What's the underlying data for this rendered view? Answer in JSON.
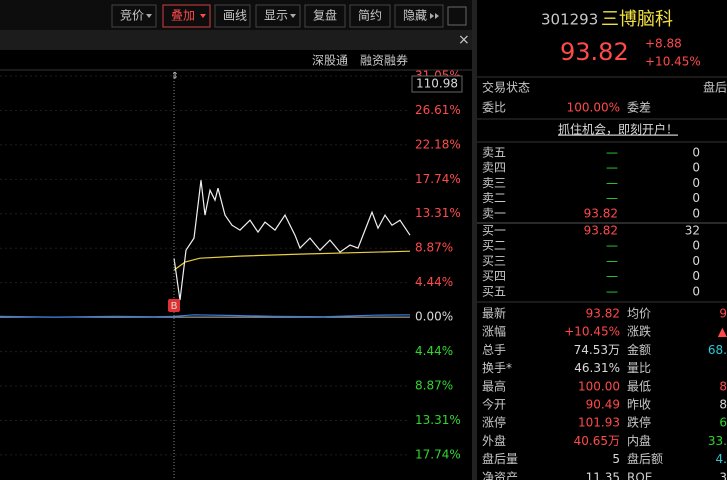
{
  "toolbar": {
    "buttons": [
      "竞价",
      "叠加",
      "画线",
      "显示",
      "复盘",
      "简约",
      "隐藏"
    ]
  },
  "subbar": {
    "links": [
      "深股通",
      "融资融券"
    ]
  },
  "chart": {
    "xlim": [
      -174,
      236
    ],
    "ylim": [
      -20.98,
      31.05
    ],
    "yticks": [
      {
        "value": 31.05,
        "label": "31.05%"
      },
      {
        "value": 26.61,
        "label": "26.61%"
      },
      {
        "value": 22.18,
        "label": "22.18%"
      },
      {
        "value": 17.74,
        "label": "17.74%"
      },
      {
        "value": 13.31,
        "label": "13.31%"
      },
      {
        "value": 8.87,
        "label": "8.87%"
      },
      {
        "value": 4.44,
        "label": "4.44%"
      },
      {
        "value": 0,
        "label": "0.00%"
      },
      {
        "value": -4.44,
        "label": "4.44%"
      },
      {
        "value": -8.87,
        "label": "8.87%"
      },
      {
        "value": -13.31,
        "label": "13.31%"
      },
      {
        "value": -17.74,
        "label": "17.74%"
      }
    ],
    "cursor_label": "110.98",
    "marker": "B",
    "price_line": {
      "x": [
        0,
        6,
        12,
        20,
        27,
        31,
        36,
        41,
        44,
        51,
        58,
        66,
        76,
        84,
        91,
        101,
        111,
        121,
        126,
        136,
        146,
        156,
        166,
        176,
        184,
        191,
        198,
        204,
        211,
        218,
        226,
        236
      ],
      "values": [
        7.59,
        2.19,
        8.62,
        10.17,
        17.63,
        13.13,
        16.34,
        15.06,
        16.6,
        13.13,
        11.84,
        11.2,
        12.48,
        10.94,
        12.23,
        11.2,
        13.13,
        10.55,
        8.88,
        10.17,
        8.62,
        9.91,
        8.37,
        9.27,
        8.88,
        11.2,
        13.51,
        11.45,
        13.13,
        11.84,
        12.48,
        10.55
      ]
    },
    "avg_line": {
      "x": [
        0,
        11,
        26,
        66,
        126,
        236
      ],
      "values": [
        6.05,
        7.08,
        7.59,
        7.85,
        8.11,
        8.49
      ]
    },
    "volume_line": {
      "x": [
        -174,
        -120,
        -60,
        -20,
        0,
        20,
        60,
        100,
        150,
        200,
        236
      ],
      "values": [
        0.1,
        0,
        0.1,
        0.05,
        0.1,
        0.3,
        0.2,
        0.1,
        0.05,
        0.25,
        0.3
      ]
    }
  },
  "quote": {
    "code": "301293",
    "name": "三博脑科",
    "price": "93.82",
    "change": "+8.88",
    "change_pct": "+10.45%"
  },
  "status": {
    "trade_status": [
      "交易状态",
      "盘后"
    ],
    "commission": [
      "委比",
      "100.00%",
      "委差"
    ],
    "promo": "抓住机会，即刻开户！"
  },
  "asks": [
    [
      "卖五",
      "—",
      "0"
    ],
    [
      "卖四",
      "—",
      "0"
    ],
    [
      "卖三",
      "—",
      "0"
    ],
    [
      "卖二",
      "—",
      "0"
    ],
    [
      "卖一",
      "93.82",
      "0"
    ]
  ],
  "bids": [
    [
      "买一",
      "93.82",
      "32"
    ],
    [
      "买二",
      "—",
      "0"
    ],
    [
      "买三",
      "—",
      "0"
    ],
    [
      "买四",
      "—",
      "0"
    ],
    [
      "买五",
      "—",
      "0"
    ]
  ],
  "stats": [
    [
      "最新",
      "93.82",
      "均价",
      "9"
    ],
    [
      "涨幅",
      "+10.45%",
      "涨跌",
      "▲"
    ],
    [
      "总手",
      "74.53万",
      "金额",
      "68."
    ],
    [
      "换手*",
      "46.31%",
      "量比"
    ],
    [
      "最高",
      "100.00",
      "最低",
      "8"
    ],
    [
      "今开",
      "90.49",
      "昨收",
      "8"
    ],
    [
      "涨停",
      "101.93",
      "跌停",
      "6"
    ],
    [
      "外盘",
      "40.65万",
      "内盘",
      "33."
    ],
    [
      "盘后量",
      "5",
      "盘后额",
      "4."
    ],
    [
      "净资产",
      "11.35",
      "ROE",
      "3"
    ]
  ]
}
